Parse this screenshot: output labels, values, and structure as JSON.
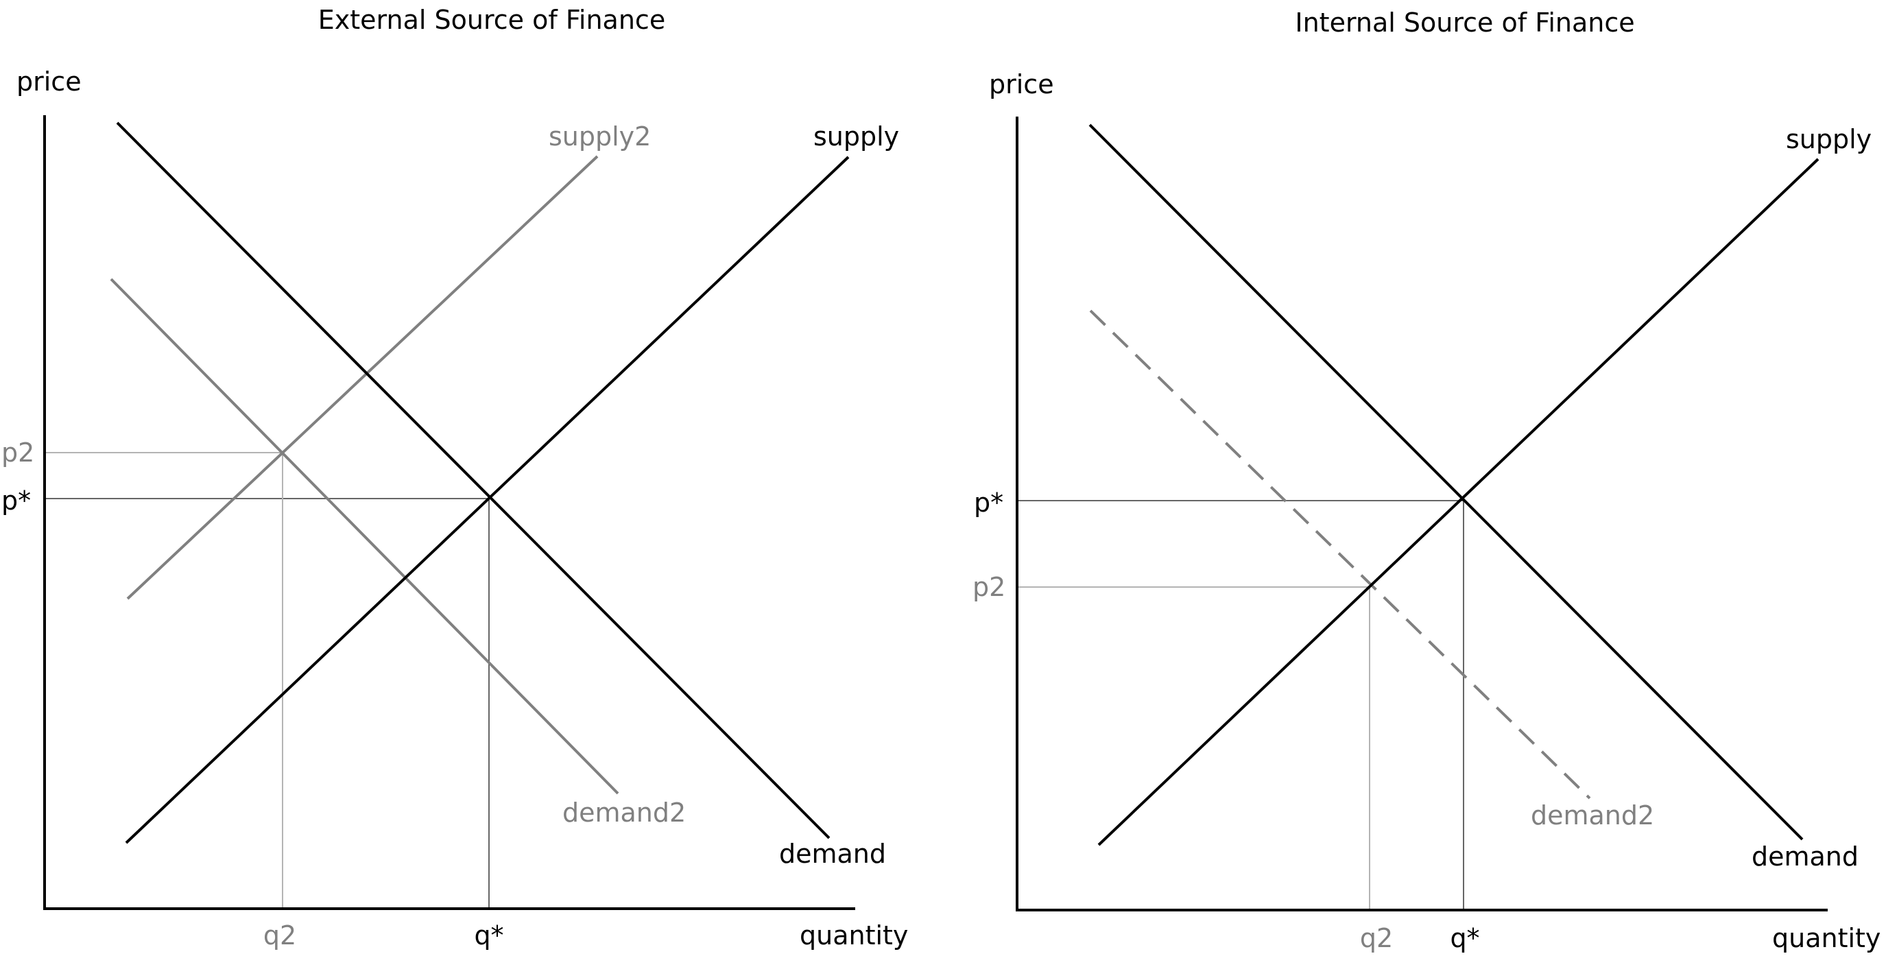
{
  "colors": {
    "primary": "#000000",
    "secondary": "#808080",
    "guide": "#b4b4b4"
  },
  "panels": [
    {
      "title": "External Source of Finance",
      "y_axis_label": "price",
      "x_axis_label": "quantity",
      "ticks": {
        "p_star": "p*",
        "p2": "p2",
        "q_star": "q*",
        "q2": "q2"
      },
      "curves": {
        "supply": "supply",
        "supply2": "supply2",
        "demand": "demand",
        "demand2": "demand2"
      }
    },
    {
      "title": "Internal Source of Finance",
      "y_axis_label": "price",
      "x_axis_label": "quantity",
      "ticks": {
        "p_star": "p*",
        "p2": "p2",
        "q_star": "q*",
        "q2": "q2"
      },
      "curves": {
        "supply": "supply",
        "demand": "demand",
        "demand2": "demand2"
      }
    }
  ]
}
